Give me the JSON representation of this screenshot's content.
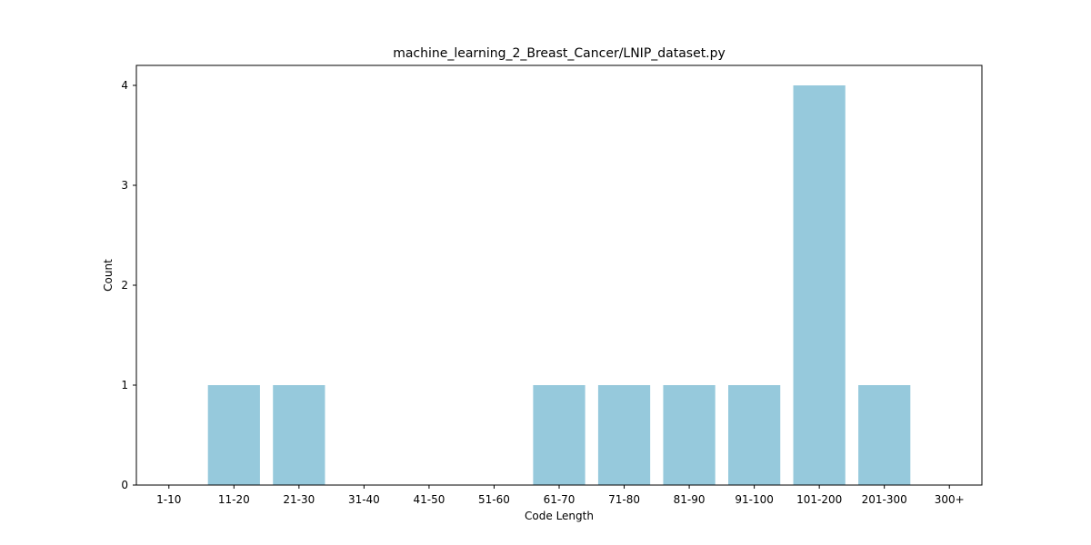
{
  "chart_data": {
    "type": "bar",
    "title": "machine_learning_2_Breast_Cancer/LNIP_dataset.py",
    "xlabel": "Code Length",
    "ylabel": "Count",
    "categories": [
      "1-10",
      "11-20",
      "21-30",
      "31-40",
      "41-50",
      "51-60",
      "61-70",
      "71-80",
      "81-90",
      "91-100",
      "101-200",
      "201-300",
      "300+"
    ],
    "values": [
      0,
      1,
      1,
      0,
      0,
      0,
      1,
      1,
      1,
      1,
      4,
      1,
      0
    ],
    "ylim": [
      0,
      4.2
    ],
    "yticks": [
      0,
      1,
      2,
      3,
      4
    ],
    "grid": false,
    "bar_color": "#96c9dc"
  }
}
